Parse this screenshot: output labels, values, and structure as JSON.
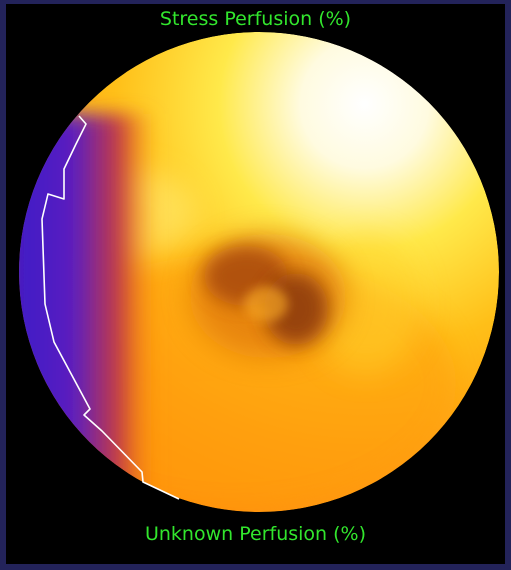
{
  "polar_map": {
    "top_label": "Stress Perfusion (%)",
    "bottom_label": "Unknown Perfusion (%)"
  },
  "colors": {
    "outer_background": "#23235a",
    "panel_background": "#000000",
    "label_color": "#32e62d",
    "defect_outline": "#ffffff"
  }
}
